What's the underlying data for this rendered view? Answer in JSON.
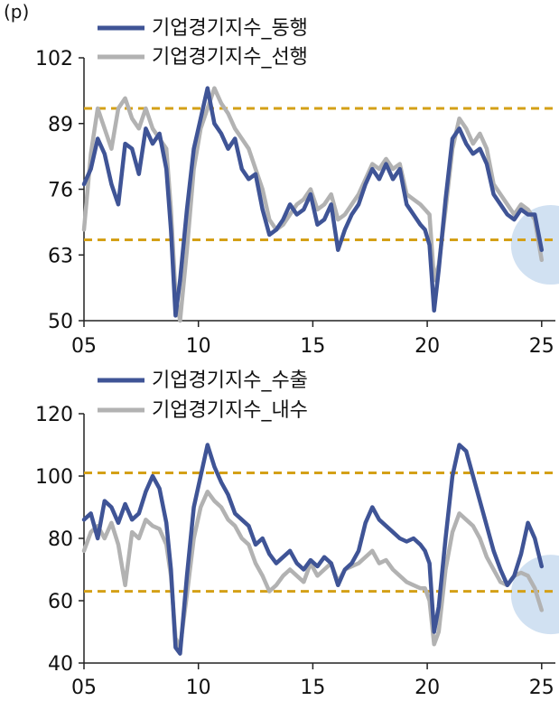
{
  "chart_data": [
    {
      "type": "line",
      "unit_label": "(p)",
      "ylim": [
        50,
        102
      ],
      "yticks": [
        50,
        63,
        76,
        89,
        102
      ],
      "xlim": [
        2005,
        2025.6
      ],
      "xticks": [
        {
          "v": 2005,
          "label": "05"
        },
        {
          "v": 2010,
          "label": "10"
        },
        {
          "v": 2015,
          "label": "15"
        },
        {
          "v": 2020,
          "label": "20"
        },
        {
          "v": 2025,
          "label": "25"
        }
      ],
      "reference_lines": [
        92,
        66
      ],
      "reference_color": "#d4a017",
      "highlight": {
        "x": 2025.0,
        "y": 65,
        "color": "#c9dcf0"
      },
      "legend_position": "top-left",
      "series": [
        {
          "name": "기업경기지수_동행",
          "color": "#3f5496",
          "x": [
            2005.0,
            2005.3,
            2005.6,
            2005.9,
            2006.2,
            2006.5,
            2006.8,
            2007.1,
            2007.4,
            2007.7,
            2008.0,
            2008.3,
            2008.6,
            2008.8,
            2009.0,
            2009.2,
            2009.5,
            2009.8,
            2010.1,
            2010.4,
            2010.7,
            2011.0,
            2011.3,
            2011.6,
            2011.9,
            2012.2,
            2012.5,
            2012.8,
            2013.1,
            2013.4,
            2013.7,
            2014.0,
            2014.3,
            2014.6,
            2014.9,
            2015.2,
            2015.5,
            2015.8,
            2016.1,
            2016.4,
            2016.7,
            2017.0,
            2017.3,
            2017.6,
            2017.9,
            2018.2,
            2018.5,
            2018.8,
            2019.1,
            2019.4,
            2019.7,
            2019.9,
            2020.1,
            2020.3,
            2020.5,
            2020.8,
            2021.1,
            2021.4,
            2021.7,
            2022.0,
            2022.3,
            2022.6,
            2022.9,
            2023.2,
            2023.5,
            2023.8,
            2024.1,
            2024.4,
            2024.7,
            2025.0
          ],
          "y": [
            77,
            80,
            86,
            83,
            77,
            73,
            85,
            84,
            79,
            88,
            85,
            87,
            80,
            68,
            51,
            58,
            72,
            84,
            90,
            96,
            89,
            87,
            84,
            86,
            80,
            78,
            79,
            72,
            67,
            68,
            70,
            73,
            71,
            72,
            75,
            69,
            70,
            73,
            64,
            68,
            71,
            73,
            77,
            80,
            78,
            81,
            78,
            80,
            73,
            71,
            69,
            68,
            65,
            52,
            60,
            74,
            86,
            88,
            85,
            83,
            84,
            81,
            75,
            73,
            71,
            70,
            72,
            71,
            71,
            64
          ]
        },
        {
          "name": "기업경기지수_선행",
          "color": "#b2b2b2",
          "x": [
            2005.0,
            2005.3,
            2005.6,
            2005.9,
            2006.2,
            2006.5,
            2006.8,
            2007.1,
            2007.4,
            2007.7,
            2008.0,
            2008.3,
            2008.6,
            2008.8,
            2009.0,
            2009.2,
            2009.5,
            2009.8,
            2010.1,
            2010.4,
            2010.7,
            2011.0,
            2011.3,
            2011.6,
            2011.9,
            2012.2,
            2012.5,
            2012.8,
            2013.1,
            2013.4,
            2013.7,
            2014.0,
            2014.3,
            2014.6,
            2014.9,
            2015.2,
            2015.5,
            2015.8,
            2016.1,
            2016.4,
            2016.7,
            2017.0,
            2017.3,
            2017.6,
            2017.9,
            2018.2,
            2018.5,
            2018.8,
            2019.1,
            2019.4,
            2019.7,
            2019.9,
            2020.1,
            2020.3,
            2020.5,
            2020.8,
            2021.1,
            2021.4,
            2021.7,
            2022.0,
            2022.3,
            2022.6,
            2022.9,
            2023.2,
            2023.5,
            2023.8,
            2024.1,
            2024.4,
            2024.7,
            2025.0
          ],
          "y": [
            68,
            83,
            92,
            88,
            84,
            92,
            94,
            90,
            88,
            92,
            88,
            86,
            84,
            72,
            55,
            50,
            64,
            80,
            88,
            92,
            96,
            93,
            91,
            88,
            86,
            84,
            80,
            76,
            70,
            68,
            69,
            71,
            73,
            74,
            76,
            72,
            73,
            75,
            70,
            71,
            73,
            75,
            78,
            81,
            80,
            82,
            80,
            81,
            75,
            74,
            73,
            72,
            71,
            58,
            61,
            72,
            84,
            90,
            88,
            85,
            87,
            84,
            77,
            75,
            73,
            71,
            73,
            72,
            70,
            62
          ]
        }
      ]
    },
    {
      "type": "line",
      "ylim": [
        40,
        120
      ],
      "yticks": [
        40,
        60,
        80,
        100,
        120
      ],
      "xlim": [
        2005,
        2025.6
      ],
      "xticks": [
        {
          "v": 2005,
          "label": "05"
        },
        {
          "v": 2010,
          "label": "10"
        },
        {
          "v": 2015,
          "label": "15"
        },
        {
          "v": 2020,
          "label": "20"
        },
        {
          "v": 2025,
          "label": "25"
        }
      ],
      "reference_lines": [
        101,
        63
      ],
      "reference_color": "#d4a017",
      "highlight": {
        "x": 2025.0,
        "y": 62,
        "color": "#c9dcf0"
      },
      "legend_position": "top-left",
      "series": [
        {
          "name": "기업경기지수_수출",
          "color": "#3f5496",
          "x": [
            2005.0,
            2005.3,
            2005.6,
            2005.9,
            2006.2,
            2006.5,
            2006.8,
            2007.1,
            2007.4,
            2007.7,
            2008.0,
            2008.3,
            2008.6,
            2008.8,
            2009.0,
            2009.2,
            2009.5,
            2009.8,
            2010.1,
            2010.4,
            2010.7,
            2011.0,
            2011.3,
            2011.6,
            2011.9,
            2012.2,
            2012.5,
            2012.8,
            2013.1,
            2013.4,
            2013.7,
            2014.0,
            2014.3,
            2014.6,
            2014.9,
            2015.2,
            2015.5,
            2015.8,
            2016.1,
            2016.4,
            2016.7,
            2017.0,
            2017.3,
            2017.6,
            2017.9,
            2018.2,
            2018.5,
            2018.8,
            2019.1,
            2019.4,
            2019.7,
            2019.9,
            2020.1,
            2020.3,
            2020.5,
            2020.8,
            2021.1,
            2021.4,
            2021.7,
            2022.0,
            2022.3,
            2022.6,
            2022.9,
            2023.2,
            2023.5,
            2023.8,
            2024.1,
            2024.4,
            2024.7,
            2025.0
          ],
          "y": [
            86,
            88,
            80,
            92,
            90,
            85,
            91,
            86,
            88,
            95,
            100,
            96,
            85,
            70,
            45,
            43,
            68,
            90,
            100,
            110,
            103,
            98,
            94,
            88,
            86,
            84,
            78,
            80,
            75,
            72,
            74,
            76,
            72,
            70,
            73,
            71,
            74,
            72,
            65,
            70,
            72,
            76,
            85,
            90,
            86,
            84,
            82,
            80,
            79,
            80,
            78,
            76,
            72,
            50,
            58,
            80,
            100,
            110,
            108,
            100,
            92,
            84,
            76,
            70,
            65,
            68,
            75,
            85,
            80,
            71
          ]
        },
        {
          "name": "기업경기지수_내수",
          "color": "#b2b2b2",
          "x": [
            2005.0,
            2005.3,
            2005.6,
            2005.9,
            2006.2,
            2006.5,
            2006.8,
            2007.1,
            2007.4,
            2007.7,
            2008.0,
            2008.3,
            2008.6,
            2008.8,
            2009.0,
            2009.2,
            2009.5,
            2009.8,
            2010.1,
            2010.4,
            2010.7,
            2011.0,
            2011.3,
            2011.6,
            2011.9,
            2012.2,
            2012.5,
            2012.8,
            2013.1,
            2013.4,
            2013.7,
            2014.0,
            2014.3,
            2014.6,
            2014.9,
            2015.2,
            2015.5,
            2015.8,
            2016.1,
            2016.4,
            2016.7,
            2017.0,
            2017.3,
            2017.6,
            2017.9,
            2018.2,
            2018.5,
            2018.8,
            2019.1,
            2019.4,
            2019.7,
            2019.9,
            2020.1,
            2020.3,
            2020.5,
            2020.8,
            2021.1,
            2021.4,
            2021.7,
            2022.0,
            2022.3,
            2022.6,
            2022.9,
            2023.2,
            2023.5,
            2023.8,
            2024.1,
            2024.4,
            2024.7,
            2025.0
          ],
          "y": [
            76,
            82,
            84,
            80,
            85,
            78,
            65,
            82,
            80,
            86,
            84,
            83,
            78,
            68,
            48,
            45,
            62,
            80,
            90,
            95,
            92,
            90,
            86,
            84,
            80,
            78,
            72,
            68,
            63,
            65,
            68,
            70,
            68,
            66,
            72,
            68,
            70,
            72,
            66,
            70,
            71,
            72,
            74,
            76,
            72,
            73,
            70,
            68,
            66,
            65,
            64,
            64,
            60,
            46,
            50,
            70,
            82,
            88,
            86,
            84,
            80,
            74,
            70,
            66,
            65,
            68,
            69,
            68,
            64,
            57
          ]
        }
      ]
    }
  ]
}
